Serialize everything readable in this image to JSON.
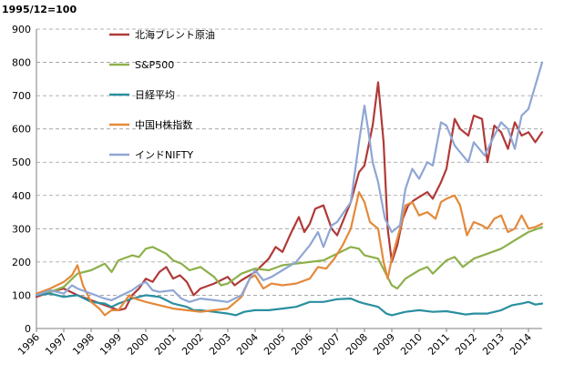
{
  "chart_data": {
    "type": "line",
    "base_label": "1995/12=100",
    "ylim": [
      0,
      900
    ],
    "yticks": [
      0,
      100,
      200,
      300,
      400,
      500,
      600,
      700,
      800,
      900
    ],
    "xlim": [
      1996,
      2014.5
    ],
    "xticks": [
      "1996",
      "1997",
      "1998",
      "1999",
      "2000",
      "2001",
      "2002",
      "2003",
      "2004",
      "2005",
      "2006",
      "2007",
      "2008",
      "2009",
      "2010",
      "2011",
      "2012",
      "2013",
      "2014"
    ],
    "grid": "horizontal-dashed",
    "legend_position": "top-left",
    "series": [
      {
        "name": "北海ブレント原油",
        "color": "#b03a38",
        "points": [
          [
            1996,
            95
          ],
          [
            1996.5,
            110
          ],
          [
            1997,
            120
          ],
          [
            1997.5,
            100
          ],
          [
            1998,
            85
          ],
          [
            1998.5,
            70
          ],
          [
            1999,
            55
          ],
          [
            1999.25,
            60
          ],
          [
            1999.5,
            100
          ],
          [
            1999.75,
            120
          ],
          [
            2000,
            150
          ],
          [
            2000.25,
            140
          ],
          [
            2000.5,
            170
          ],
          [
            2000.75,
            185
          ],
          [
            2001,
            150
          ],
          [
            2001.25,
            160
          ],
          [
            2001.5,
            140
          ],
          [
            2001.75,
            100
          ],
          [
            2002,
            120
          ],
          [
            2002.5,
            135
          ],
          [
            2003,
            155
          ],
          [
            2003.25,
            130
          ],
          [
            2003.5,
            145
          ],
          [
            2004,
            170
          ],
          [
            2004.5,
            210
          ],
          [
            2004.75,
            245
          ],
          [
            2005,
            230
          ],
          [
            2005.3,
            285
          ],
          [
            2005.6,
            335
          ],
          [
            2005.8,
            290
          ],
          [
            2006,
            315
          ],
          [
            2006.2,
            360
          ],
          [
            2006.5,
            370
          ],
          [
            2006.8,
            300
          ],
          [
            2007,
            280
          ],
          [
            2007.3,
            340
          ],
          [
            2007.5,
            380
          ],
          [
            2007.8,
            470
          ],
          [
            2008,
            490
          ],
          [
            2008.3,
            610
          ],
          [
            2008.5,
            740
          ],
          [
            2008.7,
            560
          ],
          [
            2008.85,
            300
          ],
          [
            2009,
            200
          ],
          [
            2009.2,
            250
          ],
          [
            2009.4,
            330
          ],
          [
            2009.6,
            370
          ],
          [
            2009.8,
            385
          ],
          [
            2010,
            395
          ],
          [
            2010.3,
            410
          ],
          [
            2010.5,
            390
          ],
          [
            2010.8,
            440
          ],
          [
            2011,
            480
          ],
          [
            2011.3,
            630
          ],
          [
            2011.5,
            600
          ],
          [
            2011.8,
            580
          ],
          [
            2012,
            640
          ],
          [
            2012.3,
            630
          ],
          [
            2012.5,
            500
          ],
          [
            2012.75,
            610
          ],
          [
            2013,
            590
          ],
          [
            2013.25,
            540
          ],
          [
            2013.5,
            620
          ],
          [
            2013.75,
            580
          ],
          [
            2014,
            590
          ],
          [
            2014.25,
            560
          ],
          [
            2014.5,
            590
          ]
        ]
      },
      {
        "name": "S&P500",
        "color": "#8db04a",
        "points": [
          [
            1996,
            100
          ],
          [
            1996.5,
            110
          ],
          [
            1997,
            125
          ],
          [
            1997.5,
            165
          ],
          [
            1998,
            175
          ],
          [
            1998.5,
            195
          ],
          [
            1998.75,
            170
          ],
          [
            1999,
            205
          ],
          [
            1999.5,
            220
          ],
          [
            1999.75,
            215
          ],
          [
            2000,
            240
          ],
          [
            2000.25,
            245
          ],
          [
            2000.5,
            235
          ],
          [
            2000.75,
            225
          ],
          [
            2001,
            205
          ],
          [
            2001.3,
            195
          ],
          [
            2001.6,
            175
          ],
          [
            2001.8,
            180
          ],
          [
            2002,
            185
          ],
          [
            2002.5,
            155
          ],
          [
            2002.75,
            130
          ],
          [
            2003,
            135
          ],
          [
            2003.5,
            165
          ],
          [
            2004,
            180
          ],
          [
            2004.5,
            175
          ],
          [
            2005,
            190
          ],
          [
            2005.5,
            195
          ],
          [
            2006,
            200
          ],
          [
            2006.5,
            205
          ],
          [
            2007,
            225
          ],
          [
            2007.5,
            245
          ],
          [
            2007.8,
            240
          ],
          [
            2008,
            220
          ],
          [
            2008.5,
            210
          ],
          [
            2008.75,
            170
          ],
          [
            2009,
            130
          ],
          [
            2009.2,
            120
          ],
          [
            2009.5,
            150
          ],
          [
            2010,
            175
          ],
          [
            2010.3,
            185
          ],
          [
            2010.5,
            165
          ],
          [
            2011,
            205
          ],
          [
            2011.3,
            215
          ],
          [
            2011.6,
            185
          ],
          [
            2012,
            210
          ],
          [
            2012.5,
            225
          ],
          [
            2013,
            240
          ],
          [
            2013.5,
            265
          ],
          [
            2014,
            290
          ],
          [
            2014.5,
            305
          ]
        ]
      },
      {
        "name": "日経平均",
        "color": "#2a8fa0",
        "points": [
          [
            1996,
            100
          ],
          [
            1996.5,
            105
          ],
          [
            1997,
            95
          ],
          [
            1997.5,
            100
          ],
          [
            1998,
            80
          ],
          [
            1998.5,
            75
          ],
          [
            1998.75,
            65
          ],
          [
            1999,
            75
          ],
          [
            1999.5,
            90
          ],
          [
            2000,
            100
          ],
          [
            2000.5,
            95
          ],
          [
            2001,
            75
          ],
          [
            2001.5,
            65
          ],
          [
            2001.75,
            55
          ],
          [
            2002,
            55
          ],
          [
            2002.5,
            50
          ],
          [
            2003,
            45
          ],
          [
            2003.3,
            40
          ],
          [
            2003.6,
            50
          ],
          [
            2004,
            55
          ],
          [
            2004.5,
            55
          ],
          [
            2005,
            60
          ],
          [
            2005.5,
            65
          ],
          [
            2006,
            80
          ],
          [
            2006.5,
            80
          ],
          [
            2007,
            88
          ],
          [
            2007.5,
            90
          ],
          [
            2007.8,
            80
          ],
          [
            2008,
            75
          ],
          [
            2008.5,
            65
          ],
          [
            2008.8,
            45
          ],
          [
            2009,
            40
          ],
          [
            2009.5,
            50
          ],
          [
            2010,
            55
          ],
          [
            2010.5,
            50
          ],
          [
            2011,
            52
          ],
          [
            2011.3,
            48
          ],
          [
            2011.7,
            42
          ],
          [
            2012,
            45
          ],
          [
            2012.5,
            45
          ],
          [
            2013,
            55
          ],
          [
            2013.4,
            70
          ],
          [
            2013.75,
            75
          ],
          [
            2014,
            80
          ],
          [
            2014.25,
            72
          ],
          [
            2014.5,
            75
          ]
        ]
      },
      {
        "name": "中国H株指数",
        "color": "#e4893a",
        "points": [
          [
            1996,
            105
          ],
          [
            1996.5,
            120
          ],
          [
            1997,
            140
          ],
          [
            1997.3,
            160
          ],
          [
            1997.5,
            190
          ],
          [
            1997.7,
            130
          ],
          [
            1998,
            80
          ],
          [
            1998.3,
            60
          ],
          [
            1998.5,
            40
          ],
          [
            1998.75,
            55
          ],
          [
            1999,
            55
          ],
          [
            1999.4,
            100
          ],
          [
            1999.6,
            90
          ],
          [
            2000,
            80
          ],
          [
            2000.5,
            70
          ],
          [
            2001,
            60
          ],
          [
            2001.5,
            55
          ],
          [
            2002,
            50
          ],
          [
            2002.5,
            55
          ],
          [
            2003,
            60
          ],
          [
            2003.5,
            95
          ],
          [
            2003.8,
            150
          ],
          [
            2004,
            160
          ],
          [
            2004.3,
            120
          ],
          [
            2004.6,
            135
          ],
          [
            2005,
            130
          ],
          [
            2005.5,
            135
          ],
          [
            2006,
            150
          ],
          [
            2006.3,
            185
          ],
          [
            2006.6,
            180
          ],
          [
            2006.9,
            210
          ],
          [
            2007.2,
            250
          ],
          [
            2007.5,
            300
          ],
          [
            2007.8,
            410
          ],
          [
            2008,
            380
          ],
          [
            2008.2,
            320
          ],
          [
            2008.5,
            300
          ],
          [
            2008.7,
            200
          ],
          [
            2008.85,
            150
          ],
          [
            2009,
            210
          ],
          [
            2009.3,
            300
          ],
          [
            2009.5,
            370
          ],
          [
            2009.75,
            380
          ],
          [
            2010,
            340
          ],
          [
            2010.3,
            350
          ],
          [
            2010.6,
            330
          ],
          [
            2010.8,
            380
          ],
          [
            2011,
            390
          ],
          [
            2011.3,
            400
          ],
          [
            2011.5,
            370
          ],
          [
            2011.75,
            280
          ],
          [
            2012,
            320
          ],
          [
            2012.3,
            310
          ],
          [
            2012.5,
            300
          ],
          [
            2012.75,
            330
          ],
          [
            2013,
            340
          ],
          [
            2013.25,
            290
          ],
          [
            2013.5,
            300
          ],
          [
            2013.75,
            340
          ],
          [
            2014,
            300
          ],
          [
            2014.25,
            305
          ],
          [
            2014.5,
            315
          ]
        ]
      },
      {
        "name": "インドNIFTY",
        "color": "#8fa6d4",
        "points": [
          [
            1996,
            100
          ],
          [
            1996.5,
            115
          ],
          [
            1997,
            105
          ],
          [
            1997.3,
            130
          ],
          [
            1997.5,
            120
          ],
          [
            1998,
            105
          ],
          [
            1998.5,
            90
          ],
          [
            1998.75,
            85
          ],
          [
            1999,
            95
          ],
          [
            1999.5,
            115
          ],
          [
            1999.75,
            130
          ],
          [
            2000,
            140
          ],
          [
            2000.25,
            115
          ],
          [
            2000.5,
            110
          ],
          [
            2001,
            115
          ],
          [
            2001.3,
            90
          ],
          [
            2001.6,
            80
          ],
          [
            2002,
            90
          ],
          [
            2002.5,
            85
          ],
          [
            2003,
            80
          ],
          [
            2003.5,
            100
          ],
          [
            2003.8,
            150
          ],
          [
            2004,
            175
          ],
          [
            2004.3,
            145
          ],
          [
            2004.6,
            155
          ],
          [
            2005,
            175
          ],
          [
            2005.5,
            200
          ],
          [
            2006,
            250
          ],
          [
            2006.3,
            290
          ],
          [
            2006.5,
            245
          ],
          [
            2006.8,
            310
          ],
          [
            2007,
            320
          ],
          [
            2007.5,
            380
          ],
          [
            2007.8,
            560
          ],
          [
            2008,
            670
          ],
          [
            2008.15,
            590
          ],
          [
            2008.3,
            500
          ],
          [
            2008.5,
            440
          ],
          [
            2008.75,
            330
          ],
          [
            2009,
            290
          ],
          [
            2009.3,
            310
          ],
          [
            2009.5,
            420
          ],
          [
            2009.75,
            480
          ],
          [
            2010,
            450
          ],
          [
            2010.3,
            500
          ],
          [
            2010.5,
            490
          ],
          [
            2010.8,
            620
          ],
          [
            2011,
            610
          ],
          [
            2011.3,
            550
          ],
          [
            2011.6,
            520
          ],
          [
            2011.8,
            500
          ],
          [
            2012,
            560
          ],
          [
            2012.4,
            520
          ],
          [
            2012.75,
            580
          ],
          [
            2013,
            620
          ],
          [
            2013.25,
            600
          ],
          [
            2013.5,
            540
          ],
          [
            2013.75,
            640
          ],
          [
            2014,
            660
          ],
          [
            2014.25,
            730
          ],
          [
            2014.5,
            800
          ]
        ]
      }
    ]
  }
}
